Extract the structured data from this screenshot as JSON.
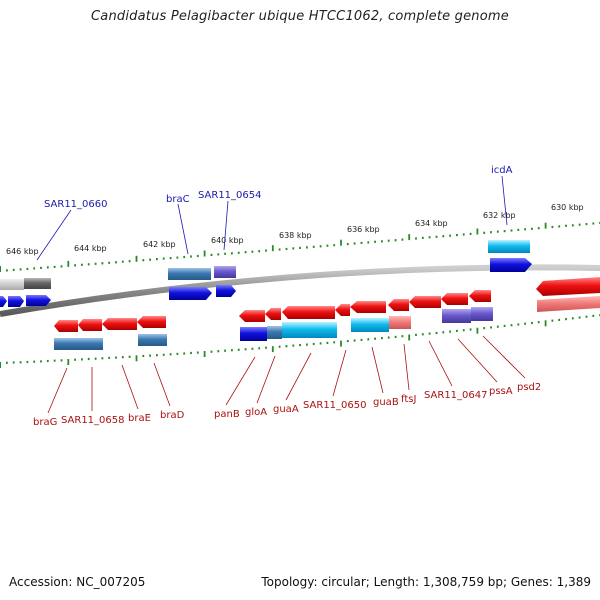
{
  "title": "Candidatus Pelagibacter ubique HTCC1062, complete genome",
  "accession": "Accession: NC_007205",
  "summary": "Topology: circular; Length: 1,308,759 bp; Genes: 1,389",
  "kbp_labels": [
    "646 kbp",
    "644 kbp",
    "642 kbp",
    "640 kbp",
    "638 kbp",
    "636 kbp",
    "634 kbp",
    "632 kbp",
    "630 kbp"
  ],
  "forward_labels": [
    "SAR11_0660",
    "braC",
    "SAR11_0654",
    "icdA"
  ],
  "reverse_labels": [
    "braG",
    "SAR11_0658",
    "braE",
    "braD",
    "panB",
    "gloA",
    "guaA",
    "SAR11_0650",
    "guaB",
    "ftsJ",
    "SAR11_0647",
    "pssA",
    "psd2"
  ],
  "colors": {
    "forward_label": "#1a1aaa",
    "reverse_label": "#aa1111",
    "gene_red": "#ee1111",
    "gene_blue": "#1111dd",
    "gene_cyan": "#11bbee",
    "gene_steel": "#3a78b0",
    "gene_purple": "#6a5acd",
    "gene_grey": "#666666",
    "tick": "#2a8a2a",
    "backbone": "#888888"
  }
}
